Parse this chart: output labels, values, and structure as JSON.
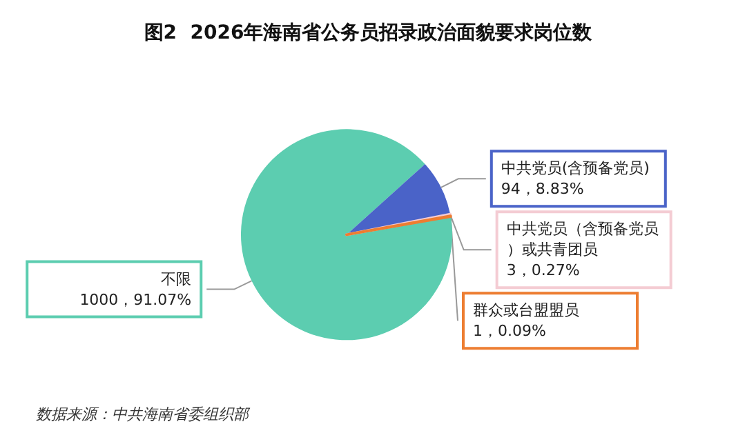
{
  "chart_data": {
    "type": "pie",
    "title": "图2  2026年海南省公务员招录政治面貌要求岗位数",
    "categories": [
      "不限",
      "中共党员(含预备党员)",
      "中共党员（含预备党员）或共青团员",
      "群众或台盟盟员"
    ],
    "values": [
      1000,
      94,
      3,
      1
    ],
    "value_labels": [
      "1000，91.07%",
      "94，8.83%",
      "3，0.27%",
      "1，0.09%"
    ],
    "colors": [
      "#5ccdb0",
      "#4a63c8",
      "#f4ccd3",
      "#ed7d31"
    ],
    "legend": false,
    "annotations": [
      "数据来源：中共海南省委组织部"
    ]
  }
}
